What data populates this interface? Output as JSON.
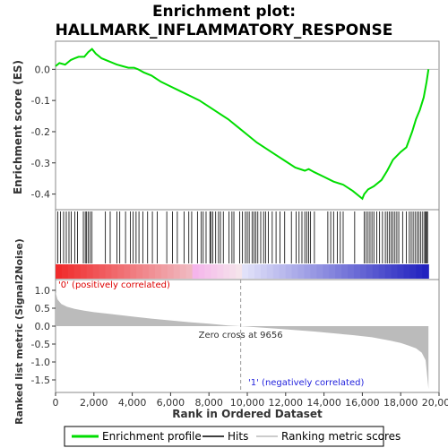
{
  "chart_data": {
    "type": "line",
    "title_line1": "Enrichment plot:",
    "title_line2": "HALLMARK_INFLAMMATORY_RESPONSE",
    "es_ylabel": "Enrichment score (ES)",
    "metric_ylabel": "Ranked list metric (Signal2Noise)",
    "xlabel": "Rank in Ordered Dataset",
    "xlim": [
      0,
      20000
    ],
    "x_ticks": [
      0,
      2000,
      4000,
      6000,
      8000,
      10000,
      12000,
      14000,
      16000,
      18000,
      20000
    ],
    "x_tick_labels": [
      "0",
      "2,000",
      "4,000",
      "6,000",
      "8,000",
      "10,000",
      "12,000",
      "14,000",
      "16,000",
      "18,000",
      "20,000"
    ],
    "es_ylim": [
      -0.45,
      0.09
    ],
    "es_ticks": [
      0.0,
      -0.1,
      -0.2,
      -0.3,
      -0.4
    ],
    "es_tick_labels": [
      "0.0",
      "-0.1",
      "-0.2",
      "-0.3",
      "-0.4"
    ],
    "metric_ylim": [
      -1.85,
      1.3
    ],
    "metric_ticks": [
      1.0,
      0.5,
      0.0,
      -0.5,
      -1.0,
      -1.5
    ],
    "metric_tick_labels": [
      "1.0",
      "0.5",
      "0.0",
      "-0.5",
      "-1.0",
      "-1.5"
    ],
    "grid": false,
    "series": [
      {
        "name": "Enrichment profile",
        "color": "#00dd00",
        "x": [
          0,
          200,
          500,
          800,
          1000,
          1200,
          1500,
          1700,
          1900,
          2100,
          2400,
          2800,
          3200,
          3500,
          3800,
          4100,
          4300,
          4600,
          5000,
          5500,
          6000,
          6500,
          7000,
          7500,
          8000,
          8500,
          9000,
          9500,
          10000,
          10500,
          11000,
          11500,
          12000,
          12500,
          13000,
          13200,
          13500,
          14000,
          14500,
          15000,
          15500,
          16000,
          16100,
          16300,
          16600,
          17000,
          17300,
          17600,
          18000,
          18300,
          18600,
          18800,
          19000,
          19200,
          19350,
          19450
        ],
        "y": [
          0.01,
          0.02,
          0.015,
          0.03,
          0.035,
          0.04,
          0.04,
          0.055,
          0.065,
          0.05,
          0.035,
          0.025,
          0.015,
          0.01,
          0.005,
          0.005,
          0.0,
          -0.01,
          -0.02,
          -0.04,
          -0.055,
          -0.07,
          -0.085,
          -0.1,
          -0.12,
          -0.14,
          -0.16,
          -0.185,
          -0.21,
          -0.235,
          -0.255,
          -0.275,
          -0.295,
          -0.315,
          -0.325,
          -0.32,
          -0.33,
          -0.345,
          -0.36,
          -0.37,
          -0.39,
          -0.415,
          -0.4,
          -0.385,
          -0.375,
          -0.355,
          -0.325,
          -0.29,
          -0.265,
          -0.25,
          -0.2,
          -0.16,
          -0.13,
          -0.09,
          -0.04,
          0.0
        ]
      }
    ],
    "hits_legend_name": "Hits",
    "metric_legend_name": "Ranking metric scores",
    "metric_curve": {
      "x": [
        0,
        100,
        300,
        600,
        1000,
        1500,
        2000,
        3000,
        4000,
        5000,
        6000,
        7000,
        8000,
        9000,
        9656,
        10500,
        11500,
        12500,
        13500,
        14500,
        15500,
        16500,
        17000,
        17500,
        18000,
        18400,
        18800,
        19100,
        19300,
        19450
      ],
      "y": [
        0.95,
        0.75,
        0.62,
        0.54,
        0.48,
        0.43,
        0.39,
        0.33,
        0.27,
        0.21,
        0.16,
        0.11,
        0.07,
        0.02,
        0.0,
        -0.03,
        -0.07,
        -0.11,
        -0.15,
        -0.2,
        -0.25,
        -0.31,
        -0.36,
        -0.41,
        -0.47,
        -0.54,
        -0.62,
        -0.74,
        -0.95,
        -1.75
      ]
    },
    "hits": [
      120,
      260,
      420,
      560,
      700,
      820,
      1000,
      1150,
      1450,
      1550,
      1620,
      1700,
      1800,
      1900,
      2600,
      2850,
      3200,
      3350,
      3650,
      3900,
      4050,
      4200,
      4350,
      4550,
      4800,
      5050,
      5300,
      5800,
      6100,
      6350,
      6700,
      6950,
      7100,
      7400,
      7600,
      7700,
      7850,
      8050,
      8100,
      8200,
      8350,
      8500,
      8600,
      8750,
      9050,
      9200,
      9300,
      9600,
      9750,
      9900,
      10000,
      10100,
      10250,
      10350,
      10450,
      10550,
      10700,
      10850,
      10950,
      11100,
      11300,
      11500,
      11700,
      11950,
      12300,
      12550,
      12700,
      12850,
      13000,
      13100,
      13200,
      13300,
      13500,
      14200,
      14350,
      14500,
      14700,
      14850,
      15000,
      15600,
      16100,
      16200,
      16300,
      16400,
      16500,
      16600,
      16750,
      16900,
      17050,
      17200,
      17300,
      17400,
      17500,
      17600,
      17700,
      17800,
      17900,
      18100,
      18300,
      18450,
      18550,
      18650,
      18750,
      18850,
      18950,
      19050,
      19150,
      19250,
      19300,
      19350,
      19400
    ],
    "zero_cross_label": "Zero cross at 9656",
    "zero_cross": 9656,
    "pos_label": "'0' (positively correlated)",
    "neg_label": "'1' (negatively correlated)",
    "legend_placement": "bottom"
  }
}
